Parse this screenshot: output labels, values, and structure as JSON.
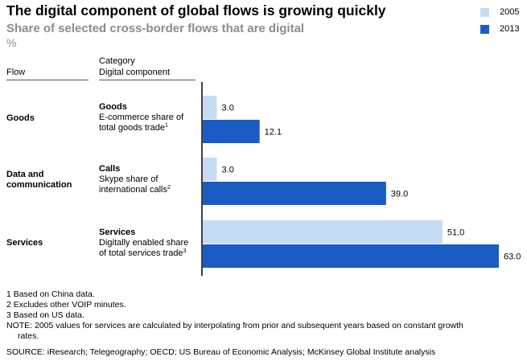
{
  "title": "The digital component of global flows is growing quickly",
  "subtitle": "Share of selected cross-border flows that are digital",
  "unit": "%",
  "legend": [
    {
      "label": "2005",
      "color": "#c6dcf5"
    },
    {
      "label": "2013",
      "color": "#1a5bc4"
    }
  ],
  "headers": {
    "flow": "Flow",
    "category": "Category",
    "digital_component": "Digital component"
  },
  "rows": [
    {
      "flow_line1": "Goods",
      "flow_line2": "",
      "category": "Goods",
      "component_line1": "E-commerce share of",
      "component_line2": "total goods trade",
      "footnote": "1"
    },
    {
      "flow_line1": "Data and",
      "flow_line2": "communication",
      "category": "Calls",
      "component_line1": "Skype share of",
      "component_line2": "international calls",
      "footnote": "2"
    },
    {
      "flow_line1": "Services",
      "flow_line2": "",
      "category": "Services",
      "component_line1": "Digitally enabled share",
      "component_line2": "of total services trade",
      "footnote": "3"
    }
  ],
  "chart_data": {
    "type": "bar",
    "orientation": "horizontal",
    "categories": [
      "Goods",
      "Calls",
      "Services"
    ],
    "series": [
      {
        "name": "2005",
        "values": [
          3.0,
          3.0,
          51.0
        ],
        "labels": [
          "3.0",
          "3.0",
          "51.0"
        ]
      },
      {
        "name": "2013",
        "values": [
          12.1,
          39.0,
          63.0
        ],
        "labels": [
          "12.1",
          "39.0",
          "63.0"
        ]
      }
    ],
    "xlim": [
      0,
      63
    ],
    "legend_position": "top-right",
    "grid": false
  },
  "footnotes": [
    "1  Based on China data.",
    "2  Excludes other VOIP minutes.",
    "3  Based on US data.",
    "NOTE: 2005 values for services are calculated by interpolating from prior and subsequent years based on constant growth",
    "rates.",
    "SOURCE: iResearch; Telegeography; OECD; US Bureau of Economic Analysis; McKinsey Global Institute analysis"
  ]
}
